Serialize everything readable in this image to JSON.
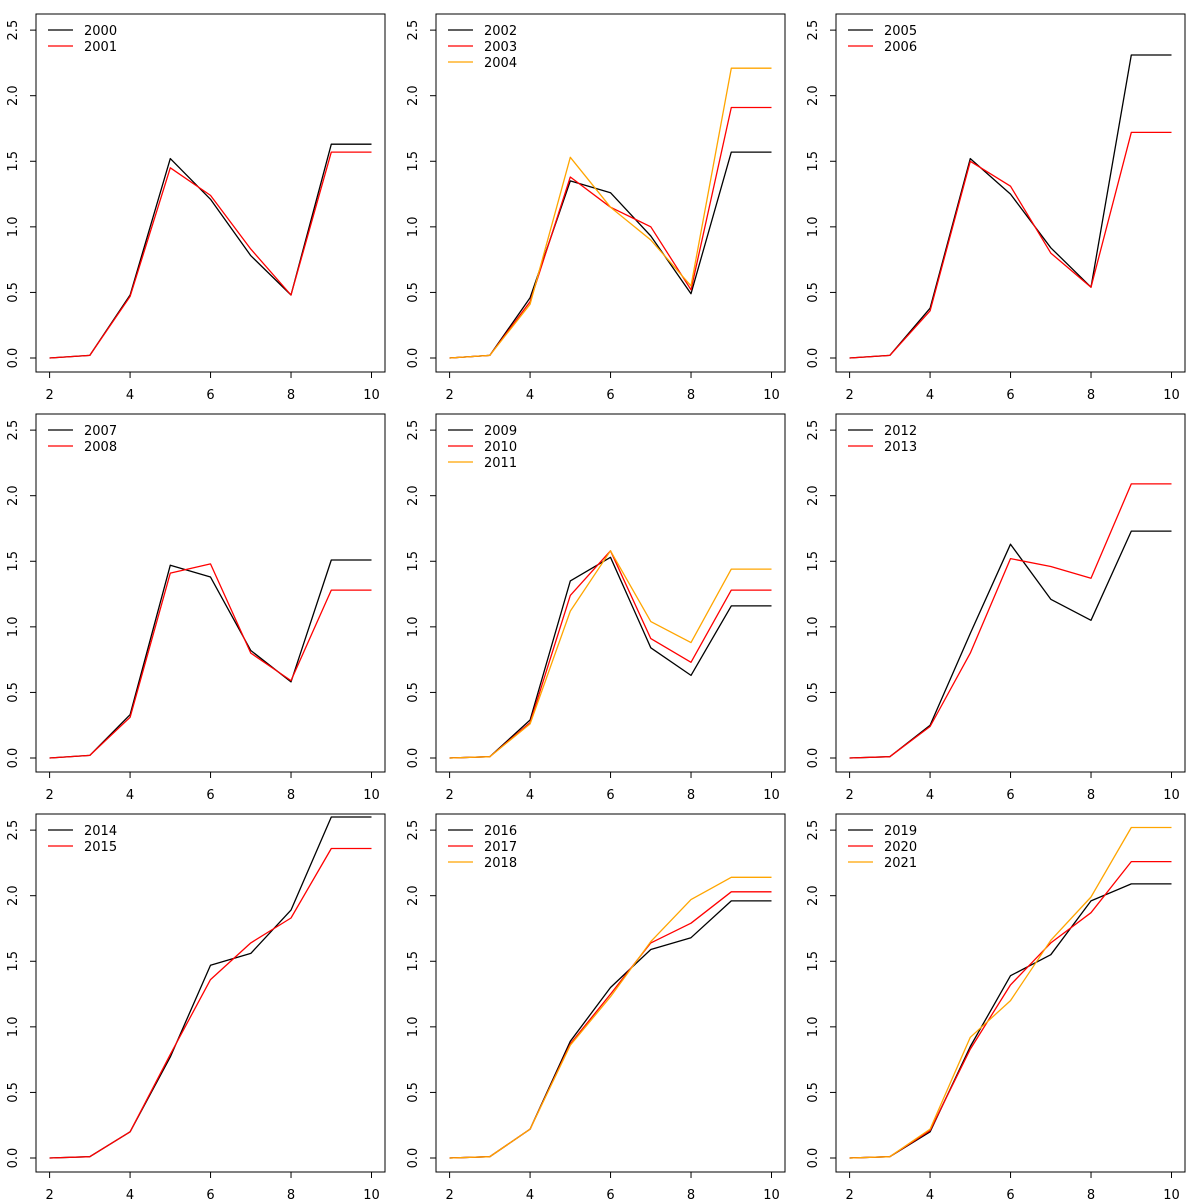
{
  "colors": {
    "series_1": "#000000",
    "series_2": "#ff0000",
    "series_3": "#ffa500",
    "axis": "#000000"
  },
  "chart_data": [
    {
      "type": "line",
      "x": [
        2,
        3,
        4,
        5,
        6,
        7,
        8,
        9,
        10
      ],
      "xlim": [
        2,
        10
      ],
      "ylim": [
        0,
        2.6
      ],
      "x_ticks": [
        "2",
        "4",
        "6",
        "8",
        "10"
      ],
      "y_ticks": [
        "0.0",
        "0.5",
        "1.0",
        "1.5",
        "2.0",
        "2.5"
      ],
      "legend_position": "top-left",
      "series": [
        {
          "name": "2000",
          "color": "#000000",
          "values": [
            0.0,
            0.02,
            0.48,
            1.52,
            1.21,
            0.78,
            0.48,
            1.63,
            1.63
          ]
        },
        {
          "name": "2001",
          "color": "#ff0000",
          "values": [
            0.0,
            0.02,
            0.47,
            1.45,
            1.24,
            0.83,
            0.48,
            1.57,
            1.57
          ]
        }
      ]
    },
    {
      "type": "line",
      "x": [
        2,
        3,
        4,
        5,
        6,
        7,
        8,
        9,
        10
      ],
      "xlim": [
        2,
        10
      ],
      "ylim": [
        0,
        2.6
      ],
      "x_ticks": [
        "2",
        "4",
        "6",
        "8",
        "10"
      ],
      "y_ticks": [
        "0.0",
        "0.5",
        "1.0",
        "1.5",
        "2.0",
        "2.5"
      ],
      "legend_position": "top-left",
      "series": [
        {
          "name": "2002",
          "color": "#000000",
          "values": [
            0.0,
            0.02,
            0.46,
            1.35,
            1.26,
            0.93,
            0.49,
            1.57,
            1.57
          ]
        },
        {
          "name": "2003",
          "color": "#ff0000",
          "values": [
            0.0,
            0.02,
            0.43,
            1.38,
            1.15,
            1.0,
            0.52,
            1.91,
            1.91
          ]
        },
        {
          "name": "2004",
          "color": "#ffa500",
          "values": [
            0.0,
            0.02,
            0.41,
            1.53,
            1.15,
            0.9,
            0.55,
            2.21,
            2.21
          ]
        }
      ]
    },
    {
      "type": "line",
      "x": [
        2,
        3,
        4,
        5,
        6,
        7,
        8,
        9,
        10
      ],
      "xlim": [
        2,
        10
      ],
      "ylim": [
        0,
        2.6
      ],
      "x_ticks": [
        "2",
        "4",
        "6",
        "8",
        "10"
      ],
      "y_ticks": [
        "0.0",
        "0.5",
        "1.0",
        "1.5",
        "2.0",
        "2.5"
      ],
      "legend_position": "top-left",
      "series": [
        {
          "name": "2005",
          "color": "#000000",
          "values": [
            0.0,
            0.02,
            0.38,
            1.52,
            1.25,
            0.84,
            0.54,
            2.31,
            2.31
          ]
        },
        {
          "name": "2006",
          "color": "#ff0000",
          "values": [
            0.0,
            0.02,
            0.36,
            1.5,
            1.31,
            0.8,
            0.54,
            1.72,
            1.72
          ]
        }
      ]
    },
    {
      "type": "line",
      "x": [
        2,
        3,
        4,
        5,
        6,
        7,
        8,
        9,
        10
      ],
      "xlim": [
        2,
        10
      ],
      "ylim": [
        0,
        2.6
      ],
      "x_ticks": [
        "2",
        "4",
        "6",
        "8",
        "10"
      ],
      "y_ticks": [
        "0.0",
        "0.5",
        "1.0",
        "1.5",
        "2.0",
        "2.5"
      ],
      "legend_position": "top-left",
      "series": [
        {
          "name": "2007",
          "color": "#000000",
          "values": [
            0.0,
            0.02,
            0.33,
            1.47,
            1.38,
            0.82,
            0.58,
            1.51,
            1.51
          ]
        },
        {
          "name": "2008",
          "color": "#ff0000",
          "values": [
            0.0,
            0.02,
            0.31,
            1.41,
            1.48,
            0.8,
            0.59,
            1.28,
            1.28
          ]
        }
      ]
    },
    {
      "type": "line",
      "x": [
        2,
        3,
        4,
        5,
        6,
        7,
        8,
        9,
        10
      ],
      "xlim": [
        2,
        10
      ],
      "ylim": [
        0,
        2.6
      ],
      "x_ticks": [
        "2",
        "4",
        "6",
        "8",
        "10"
      ],
      "y_ticks": [
        "0.0",
        "0.5",
        "1.0",
        "1.5",
        "2.0",
        "2.5"
      ],
      "legend_position": "top-left",
      "series": [
        {
          "name": "2009",
          "color": "#000000",
          "values": [
            0.0,
            0.01,
            0.29,
            1.35,
            1.53,
            0.84,
            0.63,
            1.16,
            1.16
          ]
        },
        {
          "name": "2010",
          "color": "#ff0000",
          "values": [
            0.0,
            0.01,
            0.27,
            1.24,
            1.58,
            0.91,
            0.73,
            1.28,
            1.28
          ]
        },
        {
          "name": "2011",
          "color": "#ffa500",
          "values": [
            0.0,
            0.01,
            0.26,
            1.12,
            1.58,
            1.04,
            0.88,
            1.44,
            1.44
          ]
        }
      ]
    },
    {
      "type": "line",
      "x": [
        2,
        3,
        4,
        5,
        6,
        7,
        8,
        9,
        10
      ],
      "xlim": [
        2,
        10
      ],
      "ylim": [
        0,
        2.6
      ],
      "x_ticks": [
        "2",
        "4",
        "6",
        "8",
        "10"
      ],
      "y_ticks": [
        "0.0",
        "0.5",
        "1.0",
        "1.5",
        "2.0",
        "2.5"
      ],
      "legend_position": "top-left",
      "series": [
        {
          "name": "2012",
          "color": "#000000",
          "values": [
            0.0,
            0.01,
            0.25,
            0.95,
            1.63,
            1.21,
            1.05,
            1.73,
            1.73
          ]
        },
        {
          "name": "2013",
          "color": "#ff0000",
          "values": [
            0.0,
            0.01,
            0.24,
            0.8,
            1.52,
            1.46,
            1.37,
            2.09,
            2.09
          ]
        }
      ]
    },
    {
      "type": "line",
      "x": [
        2,
        3,
        4,
        5,
        6,
        7,
        8,
        9,
        10
      ],
      "xlim": [
        2,
        10
      ],
      "ylim": [
        0,
        2.6
      ],
      "x_ticks": [
        "2",
        "4",
        "6",
        "8",
        "10"
      ],
      "y_ticks": [
        "0.0",
        "0.5",
        "1.0",
        "1.5",
        "2.0",
        "2.5"
      ],
      "legend_position": "top-left",
      "series": [
        {
          "name": "2014",
          "color": "#000000",
          "values": [
            0.0,
            0.01,
            0.2,
            0.77,
            1.47,
            1.56,
            1.89,
            2.6,
            2.6
          ]
        },
        {
          "name": "2015",
          "color": "#ff0000",
          "values": [
            0.0,
            0.01,
            0.2,
            0.79,
            1.36,
            1.64,
            1.83,
            2.36,
            2.36
          ]
        }
      ]
    },
    {
      "type": "line",
      "x": [
        2,
        3,
        4,
        5,
        6,
        7,
        8,
        9,
        10
      ],
      "xlim": [
        2,
        10
      ],
      "ylim": [
        0,
        2.6
      ],
      "x_ticks": [
        "2",
        "4",
        "6",
        "8",
        "10"
      ],
      "y_ticks": [
        "0.0",
        "0.5",
        "1.0",
        "1.5",
        "2.0",
        "2.5"
      ],
      "legend_position": "top-left",
      "series": [
        {
          "name": "2016",
          "color": "#000000",
          "values": [
            0.0,
            0.01,
            0.22,
            0.89,
            1.3,
            1.59,
            1.68,
            1.96,
            1.96
          ]
        },
        {
          "name": "2017",
          "color": "#ff0000",
          "values": [
            0.0,
            0.01,
            0.22,
            0.87,
            1.25,
            1.64,
            1.79,
            2.03,
            2.03
          ]
        },
        {
          "name": "2018",
          "color": "#ffa500",
          "values": [
            0.0,
            0.01,
            0.22,
            0.86,
            1.23,
            1.65,
            1.97,
            2.14,
            2.14
          ]
        }
      ]
    },
    {
      "type": "line",
      "x": [
        2,
        3,
        4,
        5,
        6,
        7,
        8,
        9,
        10
      ],
      "xlim": [
        2,
        10
      ],
      "ylim": [
        0,
        2.6
      ],
      "x_ticks": [
        "2",
        "4",
        "6",
        "8",
        "10"
      ],
      "y_ticks": [
        "0.0",
        "0.5",
        "1.0",
        "1.5",
        "2.0",
        "2.5"
      ],
      "legend_position": "top-left",
      "series": [
        {
          "name": "2019",
          "color": "#000000",
          "values": [
            0.0,
            0.01,
            0.2,
            0.85,
            1.39,
            1.55,
            1.96,
            2.09,
            2.09
          ]
        },
        {
          "name": "2020",
          "color": "#ff0000",
          "values": [
            0.0,
            0.01,
            0.21,
            0.83,
            1.32,
            1.64,
            1.87,
            2.26,
            2.26
          ]
        },
        {
          "name": "2021",
          "color": "#ffa500",
          "values": [
            0.0,
            0.01,
            0.22,
            0.92,
            1.2,
            1.66,
            1.99,
            2.52,
            2.52
          ]
        }
      ]
    }
  ]
}
